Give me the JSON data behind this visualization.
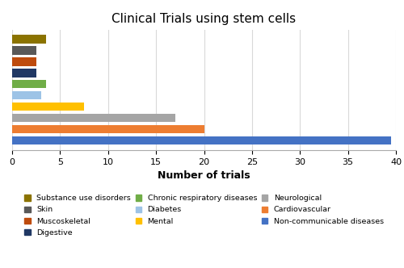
{
  "title": "Clinical Trials using stem cells",
  "xlabel": "Number of trials",
  "categories_top_to_bottom": [
    "Substance use disorders",
    "Skin",
    "Muscoskeletal",
    "Digestive",
    "Chronic respiratory diseases",
    "Diabetes",
    "Mental",
    "Neurological",
    "Cardiovascular",
    "Non-communicable diseases"
  ],
  "values_top_to_bottom": [
    3.5,
    2.5,
    2.5,
    2.5,
    3.5,
    3.0,
    7.5,
    17.0,
    20.0,
    39.5
  ],
  "colors_top_to_bottom": [
    "#8B7300",
    "#595959",
    "#BE4B0D",
    "#203864",
    "#70AD47",
    "#9DC3E6",
    "#FFC000",
    "#A5A5A5",
    "#ED7D31",
    "#4472C4"
  ],
  "xlim": [
    0,
    40
  ],
  "xticks": [
    0,
    5,
    10,
    15,
    20,
    25,
    30,
    35,
    40
  ],
  "legend_rows": [
    [
      {
        "label": "Substance use disorders",
        "color": "#8B7300"
      },
      {
        "label": "Skin",
        "color": "#595959"
      },
      {
        "label": "Muscoskeletal",
        "color": "#BE4B0D"
      }
    ],
    [
      {
        "label": "Digestive",
        "color": "#203864"
      },
      {
        "label": "Chronic respiratory diseases",
        "color": "#70AD47"
      },
      {
        "label": "Diabetes",
        "color": "#9DC3E6"
      }
    ],
    [
      {
        "label": "Mental",
        "color": "#FFC000"
      },
      {
        "label": "Neurological",
        "color": "#A5A5A5"
      },
      {
        "label": "Cardiovascular",
        "color": "#ED7D31"
      }
    ],
    [
      {
        "label": "Non-communicable diseases",
        "color": "#4472C4"
      }
    ]
  ],
  "background_color": "#FFFFFF",
  "grid_color": "#D9D9D9",
  "bar_height": 0.75
}
